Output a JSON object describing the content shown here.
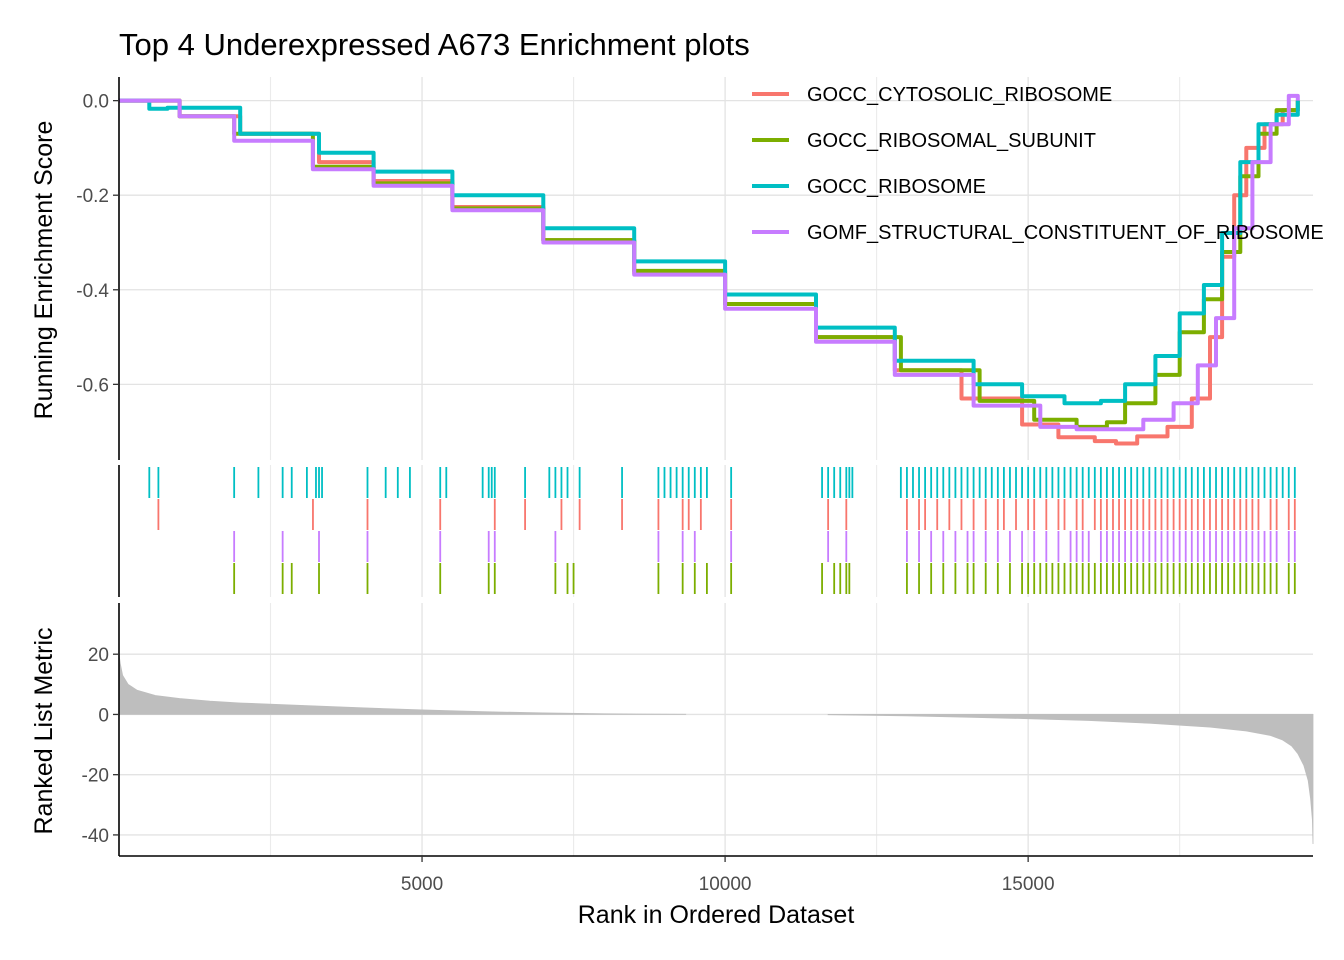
{
  "chart_data": [
    {
      "type": "line",
      "title": "Top 4 Underexpressed A673 Enrichment plots",
      "ylabel": "Running Enrichment Score",
      "xlim": [
        0,
        19700
      ],
      "ylim": [
        -0.76,
        0.05
      ],
      "y_ticks": [
        0.0,
        -0.2,
        -0.4,
        -0.6
      ],
      "y_tick_labels": [
        "0.0",
        "-0.2",
        "-0.4",
        "-0.6"
      ],
      "grid": true,
      "legend_position": "top-right",
      "series": [
        {
          "name": "GOCC_CYTOSOLIC_RIBOSOME",
          "color": "#F8766D",
          "x": [
            0,
            1000,
            2000,
            3300,
            4200,
            5500,
            7000,
            8500,
            10000,
            11500,
            12800,
            13900,
            14900,
            15500,
            16100,
            16450,
            16800,
            17300,
            17700,
            18000,
            18200,
            18400,
            18600,
            18900,
            19200,
            19450
          ],
          "y": [
            0.0,
            -0.033,
            -0.07,
            -0.13,
            -0.17,
            -0.225,
            -0.295,
            -0.365,
            -0.43,
            -0.5,
            -0.57,
            -0.63,
            -0.685,
            -0.712,
            -0.72,
            -0.725,
            -0.71,
            -0.69,
            -0.63,
            -0.5,
            -0.33,
            -0.2,
            -0.1,
            -0.05,
            -0.02,
            0.0
          ]
        },
        {
          "name": "GOCC_RIBOSOMAL_SUBUNIT",
          "color": "#7CAE00",
          "x": [
            0,
            1000,
            1900,
            3200,
            4200,
            5500,
            7000,
            8500,
            10000,
            11500,
            12900,
            14200,
            15100,
            15800,
            16300,
            16600,
            17100,
            17500,
            17900,
            18200,
            18500,
            18800,
            19100,
            19450
          ],
          "y": [
            0.0,
            -0.033,
            -0.07,
            -0.14,
            -0.175,
            -0.228,
            -0.295,
            -0.36,
            -0.43,
            -0.5,
            -0.57,
            -0.635,
            -0.675,
            -0.69,
            -0.68,
            -0.64,
            -0.58,
            -0.49,
            -0.42,
            -0.32,
            -0.16,
            -0.07,
            -0.02,
            0.0
          ]
        },
        {
          "name": "GOCC_RIBOSOME",
          "color": "#00BFC4",
          "x": [
            0,
            500,
            800,
            2000,
            3300,
            4200,
            5500,
            7000,
            8500,
            10000,
            11500,
            12800,
            14100,
            14900,
            15600,
            16200,
            16600,
            17100,
            17500,
            17900,
            18200,
            18500,
            18800,
            19100,
            19450
          ],
          "y": [
            0.0,
            -0.017,
            -0.015,
            -0.07,
            -0.11,
            -0.15,
            -0.2,
            -0.27,
            -0.34,
            -0.41,
            -0.48,
            -0.55,
            -0.6,
            -0.625,
            -0.64,
            -0.635,
            -0.6,
            -0.54,
            -0.45,
            -0.39,
            -0.28,
            -0.13,
            -0.05,
            -0.03,
            0.0
          ]
        },
        {
          "name": "GOMF_STRUCTURAL_CONSTITUENT_OF_RIBOSOME",
          "color": "#C77CFF",
          "x": [
            0,
            1000,
            1900,
            3200,
            4200,
            5500,
            7000,
            8500,
            10000,
            11500,
            12800,
            14100,
            15200,
            15800,
            16400,
            16900,
            17400,
            17800,
            18100,
            18400,
            18700,
            19000,
            19300,
            19450
          ],
          "y": [
            0.0,
            -0.033,
            -0.085,
            -0.145,
            -0.18,
            -0.232,
            -0.3,
            -0.368,
            -0.44,
            -0.51,
            -0.58,
            -0.645,
            -0.69,
            -0.695,
            -0.695,
            -0.675,
            -0.64,
            -0.56,
            -0.46,
            -0.27,
            -0.13,
            -0.05,
            0.01,
            0.0
          ]
        }
      ]
    },
    {
      "type": "scatter",
      "subtype": "rug",
      "rows": [
        {
          "name": "GOCC_RIBOSOME",
          "color": "#00BFC4",
          "hits": [
            500,
            650,
            1900,
            2300,
            2700,
            2850,
            3100,
            3250,
            3300,
            3350,
            4100,
            4400,
            4600,
            4800,
            5300,
            5400,
            6000,
            6100,
            6150,
            6200,
            6700,
            7100,
            7200,
            7300,
            7400,
            7600,
            8300,
            8900,
            9000,
            9100,
            9200,
            9300,
            9400,
            9500,
            9600,
            9700,
            10100,
            11600,
            11700,
            11800,
            11900,
            12000,
            12050,
            12100,
            12900,
            13000,
            13100,
            13200,
            13300,
            13400,
            13500,
            13600,
            13700,
            13800,
            13900,
            14000,
            14100,
            14200,
            14300,
            14400,
            14500,
            14600,
            14700,
            14800,
            14900,
            15000,
            15100,
            15200,
            15300,
            15400,
            15500,
            15600,
            15700,
            15800,
            15900,
            16000,
            16100,
            16200,
            16300,
            16400,
            16500,
            16600,
            16700,
            16800,
            16900,
            17000,
            17100,
            17200,
            17300,
            17400,
            17500,
            17600,
            17700,
            17800,
            17900,
            18000,
            18100,
            18200,
            18300,
            18400,
            18500,
            18600,
            18700,
            18800,
            18900,
            19000,
            19100,
            19200,
            19300,
            19400
          ]
        },
        {
          "name": "GOCC_CYTOSOLIC_RIBOSOME",
          "color": "#F8766D",
          "hits": [
            650,
            3200,
            4100,
            5300,
            6200,
            6700,
            7300,
            7600,
            8300,
            8900,
            9300,
            9400,
            9600,
            10100,
            11700,
            12000,
            13000,
            13200,
            13300,
            13500,
            13700,
            13900,
            14100,
            14300,
            14500,
            14600,
            14800,
            15000,
            15100,
            15300,
            15500,
            15600,
            15800,
            15900,
            16100,
            16200,
            16300,
            16400,
            16500,
            16600,
            16700,
            16800,
            16900,
            17000,
            17100,
            17200,
            17300,
            17400,
            17500,
            17600,
            17700,
            17800,
            17900,
            18000,
            18100,
            18200,
            18300,
            18400,
            18500,
            18600,
            18700,
            18800,
            19000,
            19100,
            19300,
            19400
          ]
        },
        {
          "name": "GOMF_STRUCTURAL_CONSTITUENT_OF_RIBOSOME",
          "color": "#C77CFF",
          "hits": [
            1900,
            2700,
            3300,
            4100,
            5300,
            6100,
            6200,
            7200,
            8900,
            9300,
            9500,
            10100,
            11700,
            12000,
            13000,
            13200,
            13400,
            13600,
            13800,
            14000,
            14100,
            14300,
            14500,
            14700,
            14900,
            15100,
            15300,
            15500,
            15700,
            15800,
            15900,
            16000,
            16200,
            16300,
            16400,
            16500,
            16600,
            16700,
            16800,
            16900,
            17000,
            17100,
            17200,
            17300,
            17400,
            17500,
            17600,
            17700,
            17800,
            17900,
            18000,
            18100,
            18200,
            18300,
            18400,
            18500,
            18600,
            18700,
            18800,
            18900,
            19000,
            19100,
            19300,
            19400
          ]
        },
        {
          "name": "GOCC_RIBOSOMAL_SUBUNIT",
          "color": "#7CAE00",
          "hits": [
            1900,
            2700,
            2850,
            3300,
            4100,
            5300,
            6100,
            6200,
            7200,
            7400,
            7500,
            8900,
            9300,
            9500,
            9700,
            10100,
            11600,
            11800,
            11900,
            12000,
            12050,
            13000,
            13200,
            13400,
            13600,
            13800,
            14000,
            14100,
            14300,
            14500,
            14700,
            14900,
            15000,
            15100,
            15200,
            15300,
            15400,
            15500,
            15600,
            15700,
            15800,
            15900,
            16000,
            16100,
            16200,
            16300,
            16400,
            16500,
            16600,
            16700,
            16800,
            16900,
            17000,
            17100,
            17200,
            17300,
            17400,
            17500,
            17600,
            17700,
            17800,
            17900,
            18000,
            18100,
            18200,
            18300,
            18400,
            18500,
            18600,
            18700,
            18800,
            18900,
            19000,
            19100,
            19300,
            19400
          ]
        }
      ]
    },
    {
      "type": "area",
      "ylabel": "Ranked List Metric",
      "xlabel": "Rank in Ordered Dataset",
      "xlim": [
        0,
        19700
      ],
      "ylim": [
        -47,
        37
      ],
      "x_ticks": [
        5000,
        10000,
        15000
      ],
      "x_tick_labels": [
        "5000",
        "10000",
        "15000"
      ],
      "y_ticks": [
        20,
        0,
        -20,
        -40
      ],
      "y_tick_labels": [
        "20",
        "0",
        "-20",
        "-40"
      ],
      "grid": true,
      "color": "#BEBEBE",
      "gap": [
        9350,
        11700
      ],
      "x": [
        0,
        20,
        60,
        150,
        300,
        600,
        1000,
        1500,
        2000,
        3000,
        4000,
        5000,
        6000,
        7000,
        8000,
        9350,
        11700,
        13000,
        14000,
        15000,
        16000,
        17000,
        18000,
        18600,
        19000,
        19200,
        19350,
        19450,
        19550,
        19620,
        19660,
        19690,
        19700
      ],
      "y": [
        20,
        17,
        13,
        10,
        8,
        6.3,
        5.3,
        4.4,
        3.8,
        3.0,
        2.2,
        1.5,
        0.9,
        0.5,
        0.2,
        0.05,
        -0.1,
        -0.5,
        -0.9,
        -1.4,
        -2.0,
        -2.9,
        -4.2,
        -5.5,
        -7.0,
        -8.5,
        -10.5,
        -13,
        -17,
        -22,
        -28,
        -35,
        -43
      ]
    }
  ]
}
